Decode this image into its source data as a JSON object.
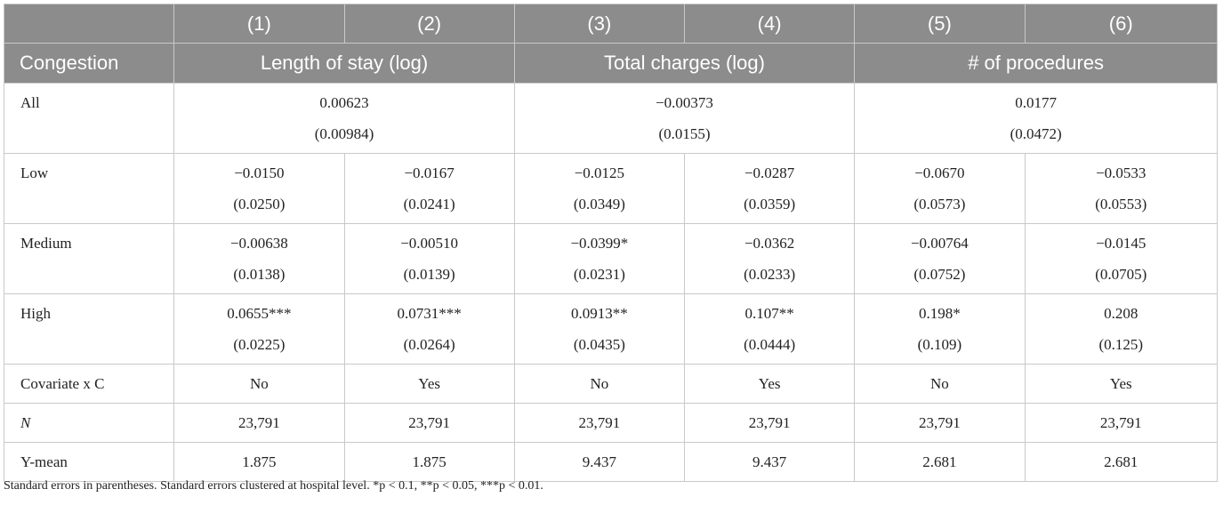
{
  "table": {
    "col_numbers": [
      "(1)",
      "(2)",
      "(3)",
      "(4)",
      "(5)",
      "(6)"
    ],
    "stub_header": "Congestion",
    "group_headers": [
      "Length of stay (log)",
      "Total charges (log)",
      "# of procedures"
    ],
    "rows": {
      "all": {
        "label": "All",
        "groups": [
          {
            "coef": "0.00623",
            "se": "(0.00984)"
          },
          {
            "coef": "−0.00373",
            "se": "(0.0155)"
          },
          {
            "coef": "0.0177",
            "se": "(0.0472)"
          }
        ]
      },
      "low": {
        "label": "Low",
        "cells": [
          {
            "coef": "−0.0150",
            "se": "(0.0250)"
          },
          {
            "coef": "−0.0167",
            "se": "(0.0241)"
          },
          {
            "coef": "−0.0125",
            "se": "(0.0349)"
          },
          {
            "coef": "−0.0287",
            "se": "(0.0359)"
          },
          {
            "coef": "−0.0670",
            "se": "(0.0573)"
          },
          {
            "coef": "−0.0533",
            "se": "(0.0553)"
          }
        ]
      },
      "medium": {
        "label": "Medium",
        "cells": [
          {
            "coef": "−0.00638",
            "se": "(0.0138)"
          },
          {
            "coef": "−0.00510",
            "se": "(0.0139)"
          },
          {
            "coef": "−0.0399*",
            "se": "(0.0231)"
          },
          {
            "coef": "−0.0362",
            "se": "(0.0233)"
          },
          {
            "coef": "−0.00764",
            "se": "(0.0752)"
          },
          {
            "coef": "−0.0145",
            "se": "(0.0705)"
          }
        ]
      },
      "high": {
        "label": "High",
        "cells": [
          {
            "coef": "0.0655***",
            "se": "(0.0225)"
          },
          {
            "coef": "0.0731***",
            "se": "(0.0264)"
          },
          {
            "coef": "0.0913**",
            "se": "(0.0435)"
          },
          {
            "coef": "0.107**",
            "se": "(0.0444)"
          },
          {
            "coef": "0.198*",
            "se": "(0.109)"
          },
          {
            "coef": "0.208",
            "se": "(0.125)"
          }
        ]
      },
      "covariate": {
        "label": "Covariate x C",
        "values": [
          "No",
          "Yes",
          "No",
          "Yes",
          "No",
          "Yes"
        ]
      },
      "n": {
        "label": "N",
        "values": [
          "23,791",
          "23,791",
          "23,791",
          "23,791",
          "23,791",
          "23,791"
        ]
      },
      "ymean": {
        "label": "Y-mean",
        "values": [
          "1.875",
          "1.875",
          "9.437",
          "9.437",
          "2.681",
          "2.681"
        ]
      }
    },
    "footnote": "Standard errors in parentheses. Standard errors clustered at hospital level. *p < 0.1, **p < 0.05, ***p < 0.01."
  },
  "colors": {
    "header_bg": "#8c8c8c",
    "header_text": "#ffffff",
    "grid_line": "#c9c9c9"
  }
}
